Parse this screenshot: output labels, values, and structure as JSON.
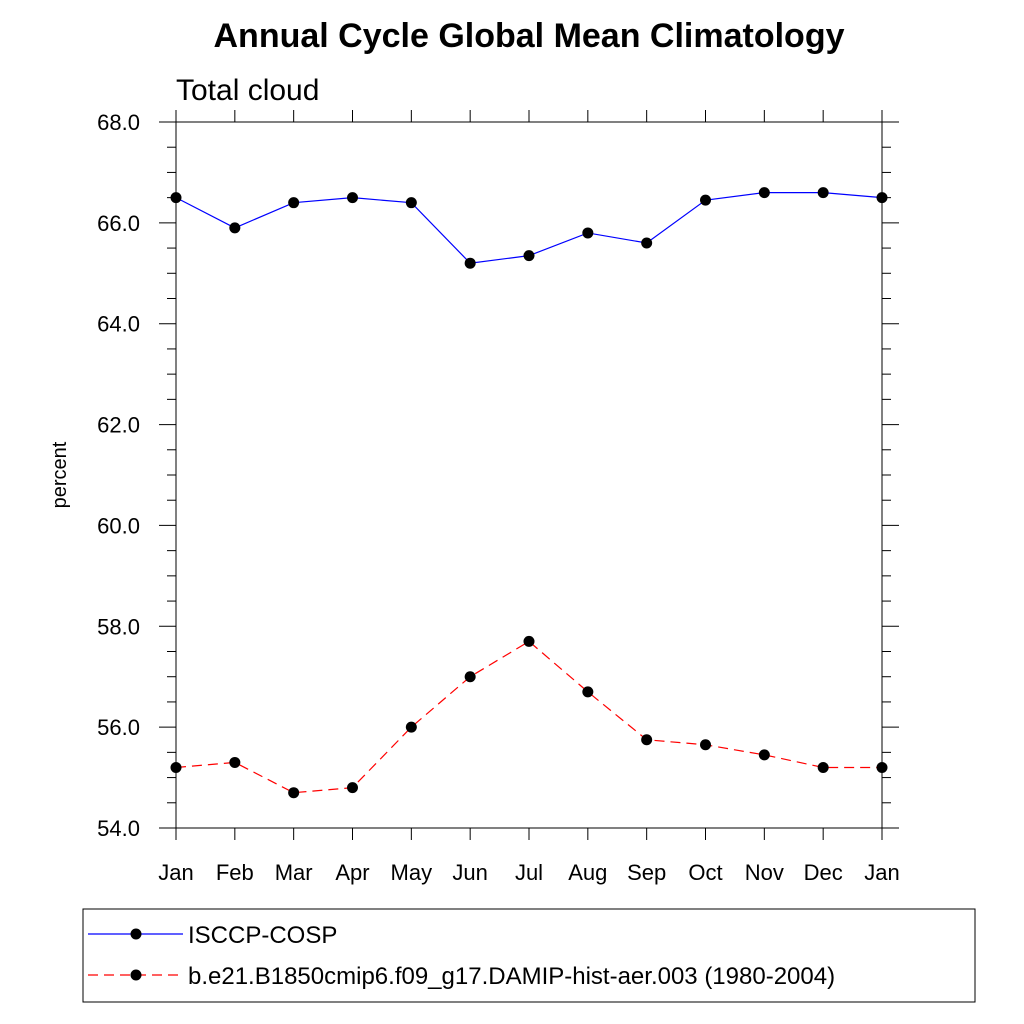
{
  "chart_data": {
    "type": "line",
    "title": "Annual Cycle Global Mean Climatology",
    "subtitle": "Total cloud",
    "xlabel": "",
    "ylabel": "percent",
    "categories": [
      "Jan",
      "Feb",
      "Mar",
      "Apr",
      "May",
      "Jun",
      "Jul",
      "Aug",
      "Sep",
      "Oct",
      "Nov",
      "Dec",
      "Jan"
    ],
    "ylim": [
      54.0,
      68.0
    ],
    "yticks": [
      "54.0",
      "56.0",
      "58.0",
      "60.0",
      "62.0",
      "64.0",
      "66.0",
      "68.0"
    ],
    "grid": false,
    "legend_position": "bottom",
    "series": [
      {
        "name": "ISCCP-COSP",
        "color": "#0000ff",
        "line_style": "solid",
        "marker": "filled-circle",
        "values": [
          66.5,
          65.9,
          66.4,
          66.5,
          66.4,
          65.2,
          65.35,
          65.8,
          65.6,
          66.45,
          66.6,
          66.6,
          66.5
        ]
      },
      {
        "name": "b.e21.B1850cmip6.f09_g17.DAMIP-hist-aer.003 (1980-2004)",
        "color": "#ff0000",
        "line_style": "dashed",
        "marker": "filled-circle",
        "values": [
          55.2,
          55.3,
          54.7,
          54.8,
          56.0,
          57.0,
          57.7,
          56.7,
          55.75,
          55.65,
          55.45,
          55.2,
          55.2
        ]
      }
    ]
  }
}
